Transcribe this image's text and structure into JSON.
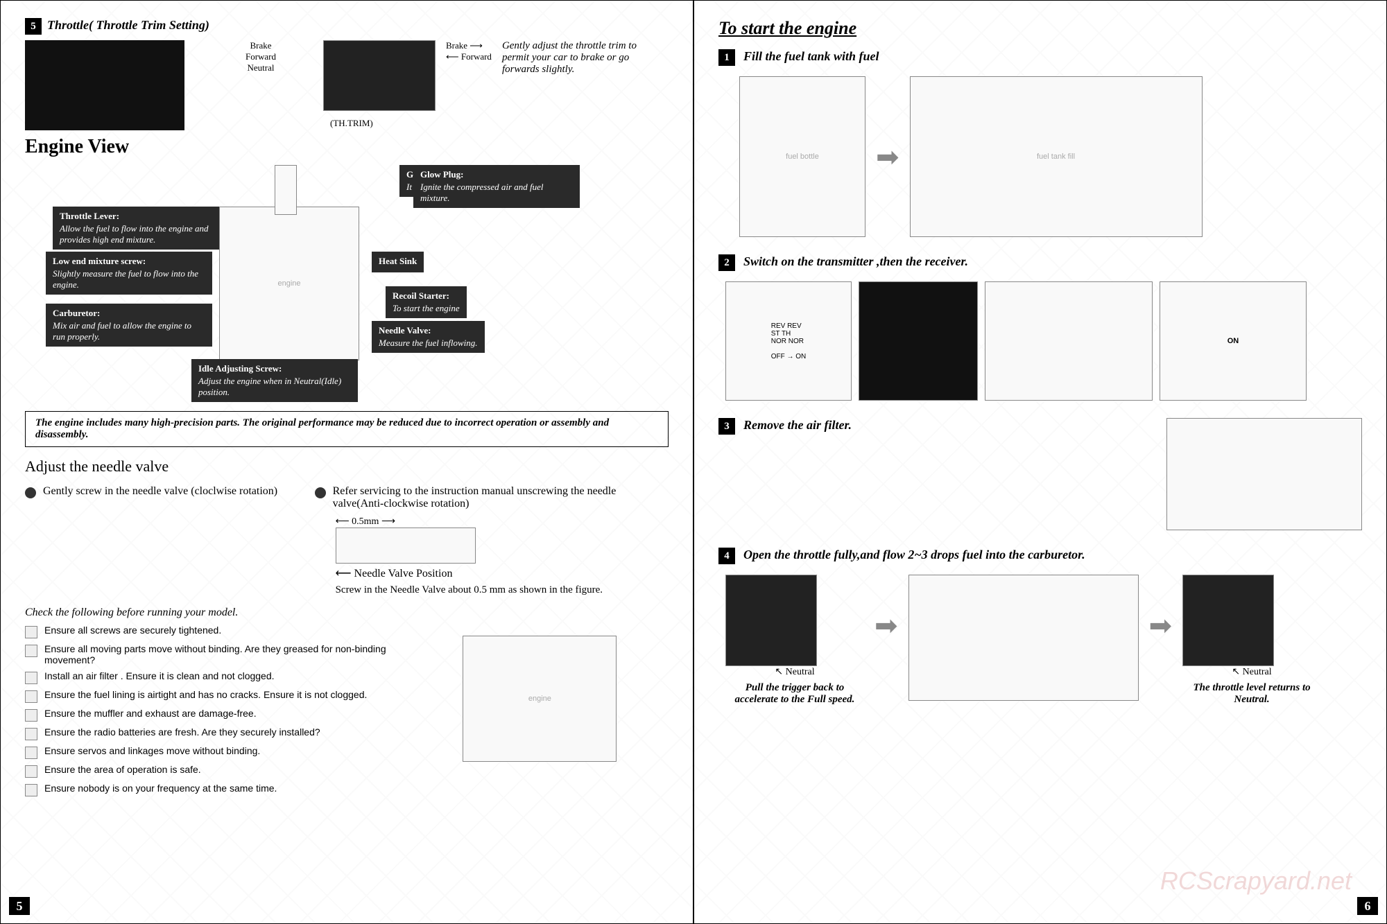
{
  "left": {
    "step5": {
      "num": "5",
      "title": "Throttle( Throttle Trim Setting)",
      "th_trim": "(TH.TRIM)",
      "brake": "Brake",
      "forward": "Forward",
      "neutral": "Neutral",
      "desc": "Gently adjust the throttle trim to permit your car to brake or go forwards slightly."
    },
    "engine_view": {
      "title": "Engine View",
      "labels": {
        "glow_plug_igniter": {
          "t": "Glow Plug Igniter:",
          "d": "It should be fully charged before use."
        },
        "glow_plug": {
          "t": "Glow Plug:",
          "d": "Ignite the compressed air and fuel mixture."
        },
        "throttle_lever": {
          "t": "Throttle Lever:",
          "d": "Allow the fuel to flow into the engine and provides high end mixture."
        },
        "heat_sink": {
          "t": "Heat Sink",
          "d": ""
        },
        "low_end": {
          "t": "Low end mixture screw:",
          "d": "Slightly measure the fuel to flow into the engine."
        },
        "recoil": {
          "t": "Recoil Starter:",
          "d": "To start the engine"
        },
        "carburetor": {
          "t": "Carburetor:",
          "d": "Mix air and fuel to allow the engine to run properly."
        },
        "needle_valve": {
          "t": "Needle Valve:",
          "d": "Measure the fuel inflowing."
        },
        "idle": {
          "t": "Idle Adjusting Screw:",
          "d": "Adjust the engine when in Neutral(Idle) position."
        }
      },
      "note": "The engine includes many high-precision parts. The original performance may be reduced due to incorrect operation or assembly and disassembly."
    },
    "needle": {
      "title": "Adjust the needle valve",
      "b1": "Gently screw in the needle valve (cloclwise  rotation)",
      "b2": "Refer servicing to the instruction manual unscrewing the needle valve(Anti-clockwise rotation)",
      "gap": "0.5mm",
      "pos_label": "Needle Valve Position",
      "screw_note": "Screw in the Needle Valve about 0.5 mm as shown in the figure."
    },
    "checklist": {
      "title": "Check the following before running your model.",
      "items": [
        "Ensure all screws are securely tightened.",
        "Ensure all moving parts move without binding. Are they greased for non-binding movement?",
        "Install an air filter . Ensure it is clean and not clogged.",
        "Ensure the fuel lining is  airtight and has no cracks. Ensure it is not clogged.",
        "Ensure the muffler and exhaust are damage-free.",
        "Ensure the radio batteries are fresh. Are they securely installed?",
        "Ensure  servos  and linkages move without binding.",
        "Ensure the area of operation is safe.",
        "Ensure nobody is on your frequency at the same time."
      ]
    },
    "page_num": "5"
  },
  "right": {
    "title": "To start the engine",
    "step1": {
      "num": "1",
      "title": "Fill the fuel tank with fuel"
    },
    "step2": {
      "num": "2",
      "title": "Switch on the transmitter ,then the receiver.",
      "rev": "REV",
      "nor": "NOR",
      "st": "ST",
      "th": "TH",
      "off": "OFF",
      "on": "ON",
      "on_label": "ON"
    },
    "step3": {
      "num": "3",
      "title": "Remove the air filter."
    },
    "step4": {
      "num": "4",
      "title": "Open the throttle fully,and  flow 2~3 drops fuel into the carburetor.",
      "neutral": "Neutral",
      "cap1": "Pull the trigger back to accelerate to the Full speed.",
      "cap2": "The throttle level returns to Neutral."
    },
    "page_num": "6"
  },
  "watermark": "RCScrapyard.net"
}
